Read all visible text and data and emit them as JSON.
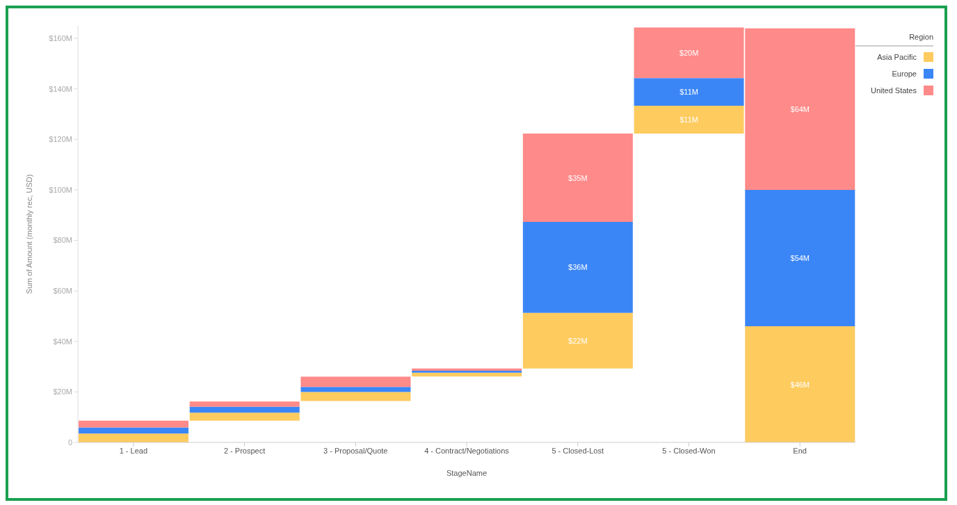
{
  "chart_data": {
    "type": "bar",
    "xlabel": "StageName",
    "ylabel": "Sum of Amount (monthly rec, USD)",
    "legend_title": "Region",
    "legend": "top right",
    "grid": false,
    "categories": [
      "1 - Lead",
      "2 - Prospect",
      "3 - Proposal/Quote",
      "4 - Contract/Negotiations",
      "5 - Closed-Lost",
      "5 - Closed-Won",
      "End"
    ],
    "series": [
      {
        "name": "Asia Pacific",
        "color": "#fecb5f",
        "base": [
          0,
          8.6,
          16.4,
          26.1,
          29.3,
          122.3,
          0
        ],
        "values": [
          3.5,
          3.2,
          3.6,
          1.5,
          22,
          11,
          46
        ],
        "value_labels": [
          null,
          null,
          null,
          null,
          "$22M",
          "$11M",
          "$46M"
        ]
      },
      {
        "name": "Europe",
        "color": "#3b86f7",
        "base": [
          3.5,
          11.8,
          20.0,
          27.6,
          51.3,
          133.3,
          46
        ],
        "values": [
          2.4,
          2.3,
          2.0,
          0.8,
          36,
          11,
          54
        ],
        "value_labels": [
          null,
          null,
          null,
          null,
          "$36M",
          "$11M",
          "$54M"
        ]
      },
      {
        "name": "United States",
        "color": "#fe8a89",
        "base": [
          5.9,
          14.1,
          22.0,
          28.4,
          87.3,
          144.3,
          100
        ],
        "values": [
          2.7,
          2.1,
          4.0,
          0.9,
          35,
          20,
          64
        ],
        "value_labels": [
          null,
          null,
          null,
          null,
          "$35M",
          "$20M",
          "$64M"
        ]
      }
    ],
    "ylim": [
      0,
      165
    ],
    "yticks": [
      {
        "value": 0,
        "label": "0"
      },
      {
        "value": 20,
        "label": "$20M"
      },
      {
        "value": 40,
        "label": "$40M"
      },
      {
        "value": 60,
        "label": "$60M"
      },
      {
        "value": 80,
        "label": "$80M"
      },
      {
        "value": 100,
        "label": "$100M"
      },
      {
        "value": 120,
        "label": "$120M"
      },
      {
        "value": 140,
        "label": "$140M"
      },
      {
        "value": 160,
        "label": "$160M"
      }
    ]
  }
}
